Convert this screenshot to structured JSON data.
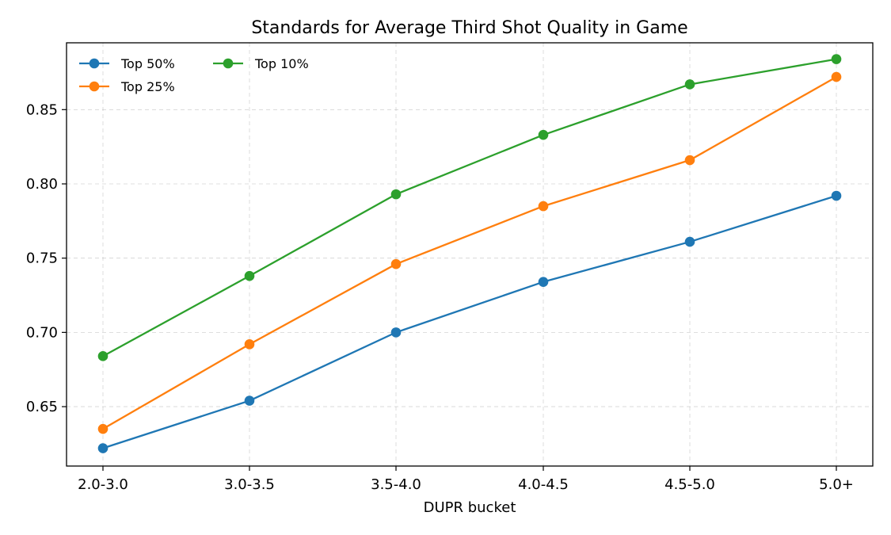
{
  "chart_data": {
    "type": "line",
    "title": "Standards for Average Third Shot Quality in Game",
    "xlabel": "DUPR bucket",
    "ylabel": "",
    "categories": [
      "2.0-3.0",
      "3.0-3.5",
      "3.5-4.0",
      "4.0-4.5",
      "4.5-5.0",
      "5.0+"
    ],
    "ylim": [
      0.61,
      0.895
    ],
    "yticks": [
      0.65,
      0.7,
      0.75,
      0.8,
      0.85
    ],
    "ytick_labels": [
      "0.65",
      "0.70",
      "0.75",
      "0.80",
      "0.85"
    ],
    "grid": true,
    "legend_position": "top-left",
    "legend_columns": 2,
    "series": [
      {
        "name": "Top 50%",
        "color": "#1f77b4",
        "values": [
          0.622,
          0.654,
          0.7,
          0.734,
          0.761,
          0.792
        ]
      },
      {
        "name": "Top 25%",
        "color": "#ff7f0e",
        "values": [
          0.635,
          0.692,
          0.746,
          0.785,
          0.816,
          0.872
        ]
      },
      {
        "name": "Top 10%",
        "color": "#2ca02c",
        "values": [
          0.684,
          0.738,
          0.793,
          0.833,
          0.867,
          0.884
        ]
      }
    ]
  }
}
